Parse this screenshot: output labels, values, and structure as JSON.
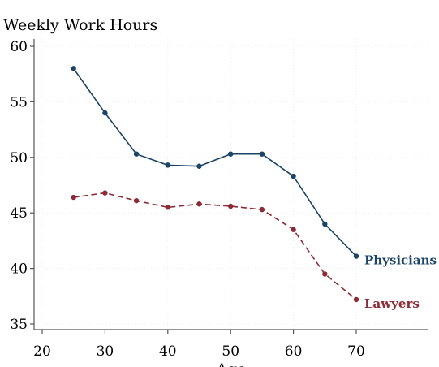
{
  "chart_data": {
    "type": "line",
    "title": "",
    "ylabel": "Weekly Work Hours",
    "xlabel": "Age",
    "xlim": [
      18,
      80
    ],
    "ylim": [
      35,
      60
    ],
    "xticks": [
      20,
      30,
      40,
      50,
      60,
      70
    ],
    "yticks": [
      35,
      40,
      45,
      50,
      55,
      60
    ],
    "grid": true,
    "legend": "inline labels at line ends",
    "series": [
      {
        "name": "Physicians",
        "color": "#1b4466",
        "line_style": "solid",
        "x": [
          25,
          30,
          35,
          40,
          45,
          50,
          55,
          60,
          65,
          70
        ],
        "y": [
          58.0,
          54.0,
          50.3,
          49.3,
          49.2,
          50.3,
          50.3,
          48.3,
          44.0,
          41.1
        ]
      },
      {
        "name": "Lawyers",
        "color": "#8c2a35",
        "line_style": "dashed",
        "x": [
          25,
          30,
          35,
          40,
          45,
          50,
          55,
          60,
          65,
          70
        ],
        "y": [
          46.4,
          46.8,
          46.1,
          45.5,
          45.8,
          45.6,
          45.3,
          43.5,
          39.5,
          37.2
        ]
      }
    ]
  }
}
